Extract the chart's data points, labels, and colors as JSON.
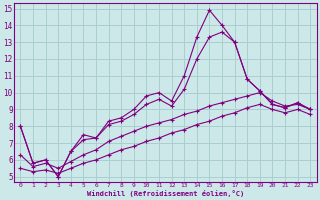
{
  "xlabel": "Windchill (Refroidissement éolien,°C)",
  "bg_color": "#cce8e8",
  "line_color": "#800080",
  "grid_color": "#aacfcf",
  "xlim": [
    -0.5,
    23.5
  ],
  "ylim": [
    4.7,
    15.3
  ],
  "yticks": [
    5,
    6,
    7,
    8,
    9,
    10,
    11,
    12,
    13,
    14,
    15
  ],
  "xticks": [
    0,
    1,
    2,
    3,
    4,
    5,
    6,
    7,
    8,
    9,
    10,
    11,
    12,
    13,
    14,
    15,
    16,
    17,
    18,
    19,
    20,
    21,
    22,
    23
  ],
  "lines": [
    {
      "x": [
        0,
        1,
        2,
        3,
        4,
        5,
        6,
        7,
        8,
        9,
        10,
        11,
        12,
        13,
        14,
        15,
        16,
        17,
        18,
        19,
        20,
        21,
        22,
        23
      ],
      "y": [
        8.0,
        5.8,
        6.0,
        5.0,
        6.5,
        7.5,
        7.3,
        8.3,
        8.5,
        9.0,
        9.8,
        10.0,
        9.5,
        11.0,
        13.3,
        14.9,
        14.0,
        13.0,
        10.8,
        10.1,
        9.3,
        9.1,
        9.4,
        9.0
      ]
    },
    {
      "x": [
        0,
        1,
        2,
        3,
        4,
        5,
        6,
        7,
        8,
        9,
        10,
        11,
        12,
        13,
        14,
        15,
        16,
        17,
        18,
        19,
        20,
        21,
        22,
        23
      ],
      "y": [
        8.0,
        5.8,
        6.0,
        5.0,
        6.5,
        7.2,
        7.3,
        8.1,
        8.3,
        8.7,
        9.3,
        9.6,
        9.2,
        10.2,
        12.0,
        13.3,
        13.6,
        13.0,
        10.8,
        10.1,
        9.3,
        9.1,
        9.4,
        9.0
      ]
    },
    {
      "x": [
        0,
        1,
        2,
        3,
        4,
        5,
        6,
        7,
        8,
        9,
        10,
        11,
        12,
        13,
        14,
        15,
        16,
        17,
        18,
        19,
        20,
        21,
        22,
        23
      ],
      "y": [
        6.3,
        5.6,
        5.8,
        5.5,
        5.9,
        6.3,
        6.6,
        7.1,
        7.4,
        7.7,
        8.0,
        8.2,
        8.4,
        8.7,
        8.9,
        9.2,
        9.4,
        9.6,
        9.8,
        10.0,
        9.5,
        9.2,
        9.3,
        9.0
      ]
    },
    {
      "x": [
        0,
        1,
        2,
        3,
        4,
        5,
        6,
        7,
        8,
        9,
        10,
        11,
        12,
        13,
        14,
        15,
        16,
        17,
        18,
        19,
        20,
        21,
        22,
        23
      ],
      "y": [
        5.5,
        5.3,
        5.4,
        5.2,
        5.5,
        5.8,
        6.0,
        6.3,
        6.6,
        6.8,
        7.1,
        7.3,
        7.6,
        7.8,
        8.1,
        8.3,
        8.6,
        8.8,
        9.1,
        9.3,
        9.0,
        8.8,
        9.0,
        8.7
      ]
    }
  ]
}
